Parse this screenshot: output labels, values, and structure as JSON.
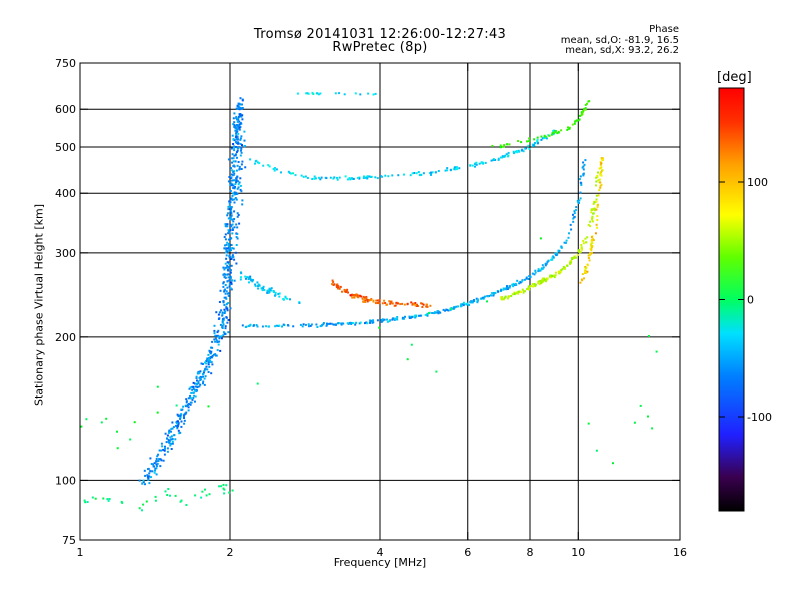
{
  "header": {
    "line1": "Tromsø 20141031 12:26:00-12:27:43",
    "line2": "RwPretec (8p)"
  },
  "stats": {
    "heading": "Phase",
    "o_mode": "mean, sd,O: -81.9, 16.5",
    "x_mode": "mean, sd,X:  93.2, 26.2"
  },
  "chart_data": {
    "type": "scatter",
    "xlabel": "Frequency [MHz]",
    "ylabel": "Stationary phase Virtual Height [km]",
    "x_scale": "log",
    "y_scale": "log",
    "xlim": [
      1,
      16
    ],
    "ylim": [
      75,
      750
    ],
    "x_ticks": [
      1,
      2,
      4,
      6,
      8,
      10,
      16
    ],
    "y_ticks": [
      75,
      100,
      200,
      300,
      400,
      500,
      600,
      750
    ],
    "x_gridlines": [
      2,
      4,
      6,
      8,
      10
    ],
    "y_gridlines": [
      100,
      200,
      300,
      400,
      500,
      600
    ],
    "grid": true,
    "colorbar": {
      "label": "[deg]",
      "ticks": [
        100,
        0,
        -100
      ],
      "range": [
        -180,
        180
      ],
      "colormap": "rainbow"
    },
    "traces": [
      {
        "name": "",
        "x": [
          1.35,
          1.45,
          1.55,
          1.65,
          1.75,
          1.85,
          1.95,
          2.05,
          2.1
        ],
        "y": [
          100,
          112,
          128,
          145,
          165,
          185,
          230,
          320,
          560
        ],
        "phase": -95,
        "spread": 0.04,
        "count": 420
      },
      {
        "name": "",
        "x": [
          1.95,
          2.0,
          2.05,
          2.1
        ],
        "y": [
          200,
          350,
          500,
          630
        ],
        "phase": -95,
        "spread": 0.03,
        "count": 260
      },
      {
        "name": "",
        "x": [
          2.1,
          2.5,
          3.0,
          3.5,
          4.0,
          4.5,
          5.0,
          5.5,
          6.0,
          6.5,
          7.0,
          7.5,
          8.0,
          8.5,
          9.0,
          9.5,
          10.0,
          10.3
        ],
        "y": [
          211,
          211,
          212,
          213,
          216,
          219,
          223,
          228,
          235,
          242,
          250,
          258,
          268,
          280,
          296,
          320,
          380,
          470
        ],
        "phase": -85,
        "spread": 0.012,
        "count": 320
      },
      {
        "name": "",
        "x": [
          7.0,
          7.5,
          8.0,
          8.5,
          9.0,
          9.5,
          10.0,
          10.5,
          10.8,
          11.0
        ],
        "y": [
          240,
          246,
          254,
          262,
          270,
          282,
          300,
          330,
          380,
          450
        ],
        "phase": 80,
        "spread": 0.015,
        "count": 160
      },
      {
        "name": "",
        "x": [
          10.2,
          10.5,
          10.8,
          11.0,
          11.2
        ],
        "y": [
          260,
          290,
          330,
          400,
          480
        ],
        "phase": 110,
        "spread": 0.015,
        "count": 80
      },
      {
        "name": "",
        "x": [
          2.2,
          2.6,
          3.0,
          3.5,
          4.0,
          5.0,
          6.0,
          7.0,
          8.0,
          9.0
        ],
        "y": [
          470,
          440,
          430,
          430,
          432,
          440,
          455,
          475,
          500,
          540
        ],
        "phase": -70,
        "spread": 0.012,
        "count": 170
      },
      {
        "name": "",
        "x": [
          6.5,
          7.5,
          8.5,
          9.5,
          10.0,
          10.3,
          10.5
        ],
        "y": [
          495,
          510,
          525,
          545,
          570,
          600,
          625
        ],
        "phase": 40,
        "spread": 0.012,
        "count": 60
      },
      {
        "name": "",
        "x": [
          3.2,
          3.5,
          3.8,
          4.2,
          4.6,
          5.0
        ],
        "y": [
          260,
          245,
          238,
          235,
          234,
          233
        ],
        "phase": 150,
        "spread": 0.02,
        "count": 110
      },
      {
        "name": "",
        "x": [
          2.1,
          2.3,
          2.5,
          2.8
        ],
        "y": [
          270,
          255,
          245,
          235
        ],
        "phase": -75,
        "spread": 0.025,
        "count": 60
      },
      {
        "name": "",
        "x": [
          2.7,
          3.2,
          3.7,
          4.0
        ],
        "y": [
          650,
          645,
          648,
          640
        ],
        "phase": -60,
        "spread": 0.01,
        "count": 18
      },
      {
        "name": "",
        "x": [
          1.0,
          1.1,
          1.3,
          1.5,
          1.6,
          1.9,
          2.1
        ],
        "y": [
          90,
          92,
          88,
          95,
          90,
          97,
          93
        ],
        "phase": -20,
        "spread": 0.03,
        "count": 40
      },
      {
        "name": "",
        "x": [
          1.1,
          1.5,
          3.0,
          5.0,
          8.0,
          12.0,
          13.0,
          15.0
        ],
        "y": [
          130,
          150,
          170,
          190,
          320,
          120,
          150,
          270
        ],
        "phase": 0,
        "spread": 0.25,
        "count": 30
      }
    ]
  }
}
